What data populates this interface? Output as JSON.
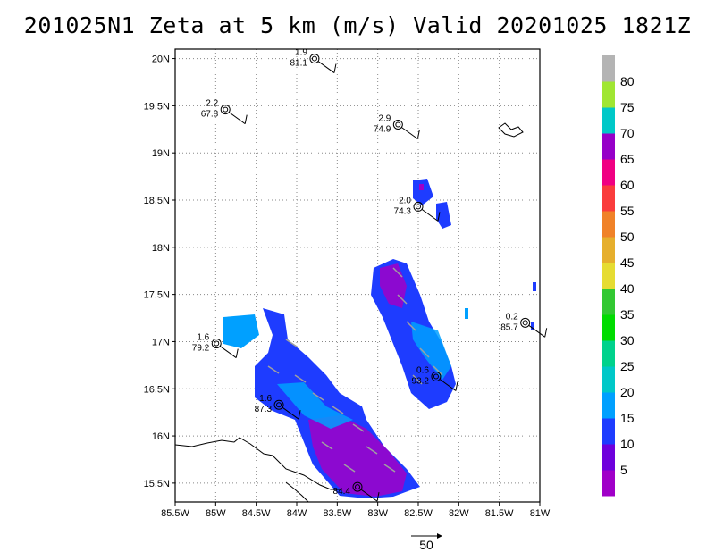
{
  "title": "201025N1 Zeta at 5 km (m/s) Valid 20201025 1821Z",
  "chart_data": {
    "type": "heatmap",
    "title": "201025N1 Zeta at 5 km (m/s) Valid 20201025 1821Z",
    "x_ticks": [
      "85.5W",
      "85W",
      "84.5W",
      "84W",
      "83.5W",
      "83W",
      "82.5W",
      "82W",
      "81.5W",
      "81W"
    ],
    "x_values": [
      -85.5,
      -85,
      -84.5,
      -84,
      -83.5,
      -83,
      -82.5,
      -82,
      -81.5,
      -81
    ],
    "y_ticks": [
      "15.5N",
      "16N",
      "16.5N",
      "17N",
      "17.5N",
      "18N",
      "18.5N",
      "19N",
      "19.5N",
      "20N"
    ],
    "y_values": [
      15.5,
      16,
      16.5,
      17,
      17.5,
      18,
      18.5,
      19,
      19.5,
      20
    ],
    "xlim": [
      -85.5,
      -81.0
    ],
    "ylim": [
      15.3,
      20.1
    ],
    "grid": true,
    "grid_style": "dotted",
    "colorbar": {
      "labels": [
        "5",
        "10",
        "15",
        "20",
        "25",
        "30",
        "35",
        "40",
        "45",
        "50",
        "55",
        "60",
        "65",
        "70",
        "75",
        "80"
      ],
      "colors": [
        "#a000c8",
        "#6e00dc",
        "#1e3cff",
        "#00a0ff",
        "#00c8c8",
        "#00d28c",
        "#00dc00",
        "#32c832",
        "#e6dc32",
        "#e6af2d",
        "#f08228",
        "#fa3c3c",
        "#f00082",
        "#9600c8",
        "#00c8c8",
        "#a0e632",
        "#b4b4b4"
      ]
    },
    "stations": [
      {
        "lon": -83.78,
        "lat": 20.0,
        "v1": "1.9",
        "v2": "81.1"
      },
      {
        "lon": -84.88,
        "lat": 19.46,
        "v1": "2.2",
        "v2": "67.8"
      },
      {
        "lon": -82.75,
        "lat": 19.3,
        "v1": "2.9",
        "v2": "74.9"
      },
      {
        "lon": -82.5,
        "lat": 18.43,
        "v1": "2.0",
        "v2": "74.3"
      },
      {
        "lon": -84.99,
        "lat": 16.98,
        "v1": "1.6",
        "v2": "79.2"
      },
      {
        "lon": -81.18,
        "lat": 17.2,
        "v1": "0.2",
        "v2": "85.7"
      },
      {
        "lon": -82.28,
        "lat": 16.63,
        "v1": "0.6",
        "v2": "93.2"
      },
      {
        "lon": -84.22,
        "lat": 16.33,
        "v1": "1.6",
        "v2": "87.3"
      },
      {
        "lon": -83.25,
        "lat": 15.46,
        "v1": "",
        "v2": "84.4"
      }
    ],
    "vector_scale": {
      "label": "50"
    }
  }
}
